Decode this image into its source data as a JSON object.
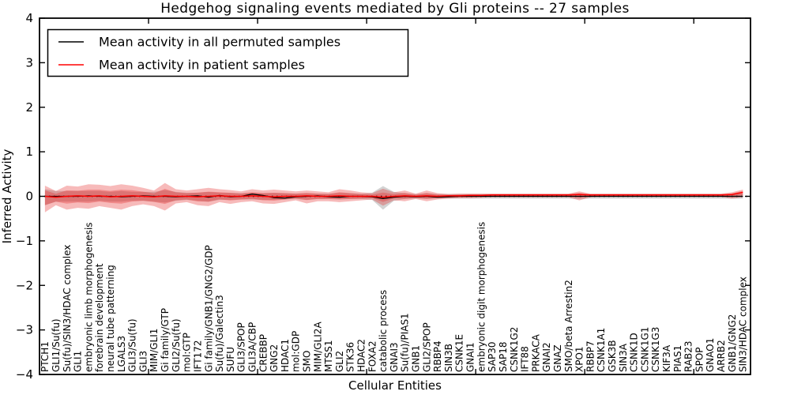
{
  "figure": {
    "title": "Hedgehog signaling events mediated by Gli proteins -- 27 samples",
    "xlabel": "Cellular Entities",
    "ylabel": "Inferred Activity"
  },
  "legend": {
    "entries": [
      {
        "label": "Mean activity in all permuted samples",
        "color": "#000000"
      },
      {
        "label": "Mean activity in patient samples",
        "color": "#ff0000"
      }
    ]
  },
  "colors": {
    "patient_line": "#ff0000",
    "permuted_line": "#000000",
    "patient_band": "rgba(228,26,28,0.30)",
    "permuted_band": "rgba(128,128,128,0.35)",
    "frame": "#000000"
  },
  "chart_data": {
    "type": "line",
    "title": "Hedgehog signaling events mediated by Gli proteins -- 27 samples",
    "xlabel": "Cellular Entities",
    "ylabel": "Inferred Activity",
    "ylim": [
      -4,
      4
    ],
    "ytick_values": [
      4,
      3,
      2,
      1,
      0,
      -1,
      -2,
      -3,
      -4
    ],
    "xtick_values": [
      10,
      20,
      30,
      40,
      50,
      60
    ],
    "grid": false,
    "zero_line": true,
    "legend_position": "upper left",
    "categories": [
      "PTCH1",
      "GLI1/Su(fu)",
      "Su(fu)/SIN3/HDAC complex",
      "GLI1",
      "embryonic limb morphogenesis",
      "forebrain development",
      "neural tube patterning",
      "LGALS3",
      "GLI3/Su(fu)",
      "GLI3",
      "MIM/GLI1",
      "Gi family/GTP",
      "GLI2/Su(fu)",
      "mol:GTP",
      "IFT172",
      "Gi family/GNB1/GNG2/GDP",
      "Su(fu)/Galectin3",
      "SUFU",
      "GLI3/SPOP",
      "GLI3A/CBP",
      "CREBBP",
      "GNG2",
      "HDAC1",
      "mol:GDP",
      "SMO",
      "MIM/GLI2A",
      "MTSS1",
      "GLI2",
      "STK36",
      "HDAC2",
      "FOXA2",
      "catabolic process",
      "GNAI3",
      "Su(fu)/PIAS1",
      "GNB1",
      "GLI2/SPOP",
      "RBBP4",
      "SIN3B",
      "CSNK1E",
      "GNAI1",
      "embryonic digit morphogenesis",
      "SAP30",
      "SAP18",
      "CSNK1G2",
      "IFT88",
      "PRKACA",
      "GNAI2",
      "GNAZ",
      "SMO/beta Arrestin2",
      "XPO1",
      "RBBP7",
      "CSNK1A1",
      "GSK3B",
      "SIN3A",
      "CSNK1D",
      "CSNK1G1",
      "CSNK1G3",
      "KIF3A",
      "PIAS1",
      "RAB23",
      "SPOP",
      "GNAO1",
      "ARRB2",
      "GNB1/GNG2",
      "SIN3/HDAC complex"
    ],
    "series": [
      {
        "name": "Mean activity in all permuted samples",
        "color": "#000000",
        "values": [
          0,
          0,
          0,
          0,
          0.01,
          0,
          0,
          -0.01,
          0,
          0.01,
          0,
          0,
          -0.01,
          0,
          0.01,
          -0.02,
          0.02,
          -0.01,
          0,
          0.05,
          0.02,
          -0.03,
          -0.04,
          -0.01,
          0,
          0.01,
          -0.01,
          -0.02,
          0,
          0,
          -0.01,
          -0.05,
          -0.02,
          0,
          -0.01,
          0,
          -0.02,
          -0.01,
          0,
          0,
          0,
          0,
          0,
          0,
          0,
          0,
          0,
          0,
          0,
          0,
          0,
          0,
          0,
          0,
          0,
          0,
          0,
          0,
          0,
          0,
          0,
          0,
          0,
          0,
          0
        ]
      },
      {
        "name": "Mean activity in patient samples",
        "color": "#ff0000",
        "values": [
          0,
          -0.02,
          0,
          0.01,
          0,
          0.01,
          -0.01,
          0,
          0.01,
          0,
          -0.01,
          0.01,
          0,
          0,
          -0.01,
          0,
          0.01,
          0,
          0,
          0.01,
          0,
          -0.01,
          0,
          0,
          0.01,
          0,
          0,
          0.01,
          0,
          0,
          0,
          -0.02,
          0,
          0.01,
          0,
          0.01,
          0,
          0.01,
          0.01,
          0.02,
          0.02,
          0.03,
          0.03,
          0.03,
          0.03,
          0.03,
          0.03,
          0.03,
          0.03,
          0.04,
          0.03,
          0.03,
          0.03,
          0.03,
          0.03,
          0.03,
          0.03,
          0.03,
          0.03,
          0.03,
          0.03,
          0.03,
          0.03,
          0.04,
          0.09
        ]
      }
    ],
    "bands": [
      {
        "name": "permuted-samples-band",
        "upper": [
          0.16,
          0.12,
          0.12,
          0.12,
          0.12,
          0.12,
          0.1,
          0.12,
          0.1,
          0.1,
          0.1,
          0.14,
          0.1,
          0.08,
          0.08,
          0.1,
          0.08,
          0.08,
          0.07,
          0.08,
          0.07,
          0.08,
          0.07,
          0.06,
          0.07,
          0.06,
          0.06,
          0.08,
          0.07,
          0.06,
          0.08,
          0.23,
          0.1,
          0.07,
          0.05,
          0.07,
          0.05,
          0.05,
          0.05,
          0.05,
          0.05,
          0.05,
          0.05,
          0.05,
          0.05,
          0.05,
          0.05,
          0.05,
          0.05,
          0.06,
          0.05,
          0.05,
          0.05,
          0.05,
          0.05,
          0.05,
          0.05,
          0.05,
          0.05,
          0.05,
          0.05,
          0.05,
          0.05,
          0.05,
          0.06
        ],
        "lower": [
          -0.2,
          -0.12,
          -0.12,
          -0.12,
          -0.12,
          -0.1,
          -0.12,
          -0.12,
          -0.1,
          -0.1,
          -0.12,
          -0.14,
          -0.1,
          -0.08,
          -0.1,
          -0.12,
          -0.08,
          -0.08,
          -0.07,
          -0.07,
          -0.08,
          -0.08,
          -0.07,
          -0.06,
          -0.08,
          -0.06,
          -0.06,
          -0.07,
          -0.06,
          -0.06,
          -0.08,
          -0.3,
          -0.1,
          -0.06,
          -0.05,
          -0.06,
          -0.05,
          -0.05,
          -0.05,
          -0.05,
          -0.05,
          -0.05,
          -0.05,
          -0.05,
          -0.05,
          -0.05,
          -0.05,
          -0.05,
          -0.05,
          -0.06,
          -0.05,
          -0.05,
          -0.05,
          -0.05,
          -0.05,
          -0.05,
          -0.05,
          -0.05,
          -0.05,
          -0.05,
          -0.05,
          -0.05,
          -0.05,
          -0.05,
          -0.05
        ]
      },
      {
        "name": "patient-samples-band",
        "upper": [
          0.24,
          0.12,
          0.24,
          0.22,
          0.27,
          0.26,
          0.23,
          0.27,
          0.24,
          0.19,
          0.13,
          0.3,
          0.16,
          0.13,
          0.16,
          0.19,
          0.16,
          0.14,
          0.11,
          0.16,
          0.13,
          0.15,
          0.13,
          0.11,
          0.13,
          0.11,
          0.09,
          0.16,
          0.13,
          0.09,
          0.07,
          0.17,
          0.09,
          0.13,
          0.06,
          0.13,
          0.07,
          0.05,
          0.06,
          0.06,
          0.06,
          0.06,
          0.06,
          0.06,
          0.06,
          0.06,
          0.06,
          0.06,
          0.06,
          0.11,
          0.06,
          0.06,
          0.06,
          0.06,
          0.06,
          0.06,
          0.06,
          0.06,
          0.06,
          0.06,
          0.06,
          0.06,
          0.06,
          0.09,
          0.15
        ],
        "lower": [
          -0.36,
          -0.2,
          -0.3,
          -0.26,
          -0.28,
          -0.22,
          -0.26,
          -0.3,
          -0.22,
          -0.18,
          -0.22,
          -0.32,
          -0.16,
          -0.13,
          -0.2,
          -0.22,
          -0.13,
          -0.17,
          -0.13,
          -0.11,
          -0.16,
          -0.17,
          -0.13,
          -0.09,
          -0.16,
          -0.11,
          -0.11,
          -0.13,
          -0.11,
          -0.09,
          -0.07,
          -0.21,
          -0.09,
          -0.11,
          -0.06,
          -0.11,
          -0.07,
          -0.05,
          -0.04,
          -0.04,
          -0.03,
          -0.02,
          -0.02,
          -0.02,
          -0.02,
          -0.02,
          -0.02,
          -0.02,
          -0.02,
          -0.09,
          -0.02,
          -0.01,
          -0.01,
          -0.01,
          -0.01,
          -0.01,
          -0.01,
          -0.01,
          -0.01,
          -0.01,
          -0.01,
          -0.01,
          -0.01,
          -0.05,
          -0.02
        ]
      }
    ]
  }
}
